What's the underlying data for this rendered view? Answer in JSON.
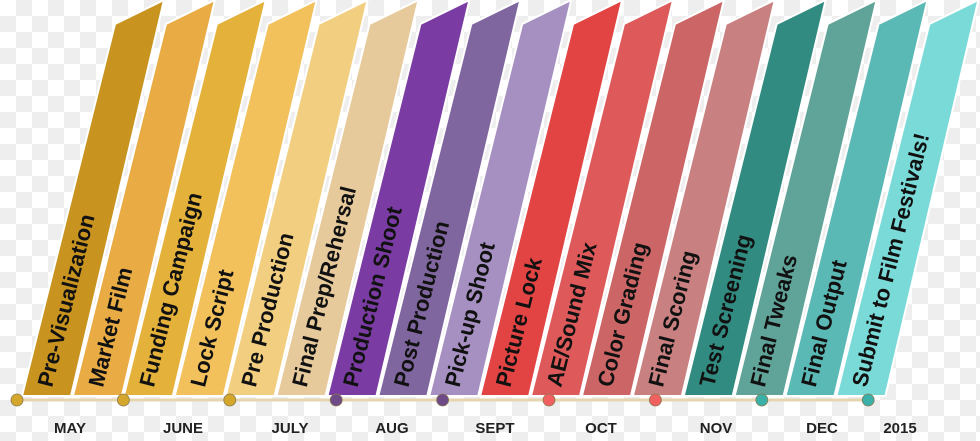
{
  "phases": [
    {
      "label": "Pre-Visualization",
      "color": "#C8931F"
    },
    {
      "label": "Market Film",
      "color": "#E9AC45"
    },
    {
      "label": "Funding Campaign",
      "color": "#E4B23A"
    },
    {
      "label": "Lock Script",
      "color": "#F2C15C"
    },
    {
      "label": "Pre Production",
      "color": "#F2CF80"
    },
    {
      "label": "Final Prep/Rehersal",
      "color": "#E6CA9C"
    },
    {
      "label": "Production Shoot",
      "color": "#7A3BA2"
    },
    {
      "label": "Post Production",
      "color": "#80669F"
    },
    {
      "label": "Pick-up Shoot",
      "color": "#A690C2"
    },
    {
      "label": "Picture Lock",
      "color": "#E24343"
    },
    {
      "label": "AE/Sound Mix",
      "color": "#DE5A5A"
    },
    {
      "label": "Color Grading",
      "color": "#CC6565"
    },
    {
      "label": "Final Scoring",
      "color": "#C98080"
    },
    {
      "label": "Test Screening",
      "color": "#318B80"
    },
    {
      "label": "Final Tweaks",
      "color": "#60A398"
    },
    {
      "label": "Final Output",
      "color": "#5BB9B5"
    },
    {
      "label": "Submit to Film Festivals!",
      "color": "#7ADAD8"
    }
  ],
  "timeline": {
    "line_color": "#E6D6B0",
    "markers": [
      {
        "color": "#D4A72C"
      },
      {
        "color": "#D4A72C"
      },
      {
        "color": "#D4A72C"
      },
      {
        "color": "#6E4A86"
      },
      {
        "color": "#6E4A86"
      },
      {
        "color": "#F06060"
      },
      {
        "color": "#F06060"
      },
      {
        "color": "#3BB0A8"
      },
      {
        "color": "#3BB0A8"
      }
    ],
    "months": [
      "MAY",
      "JUNE",
      "JULY",
      "AUG",
      "SEPT",
      "OCT",
      "NOV",
      "DEC",
      "2015"
    ]
  }
}
